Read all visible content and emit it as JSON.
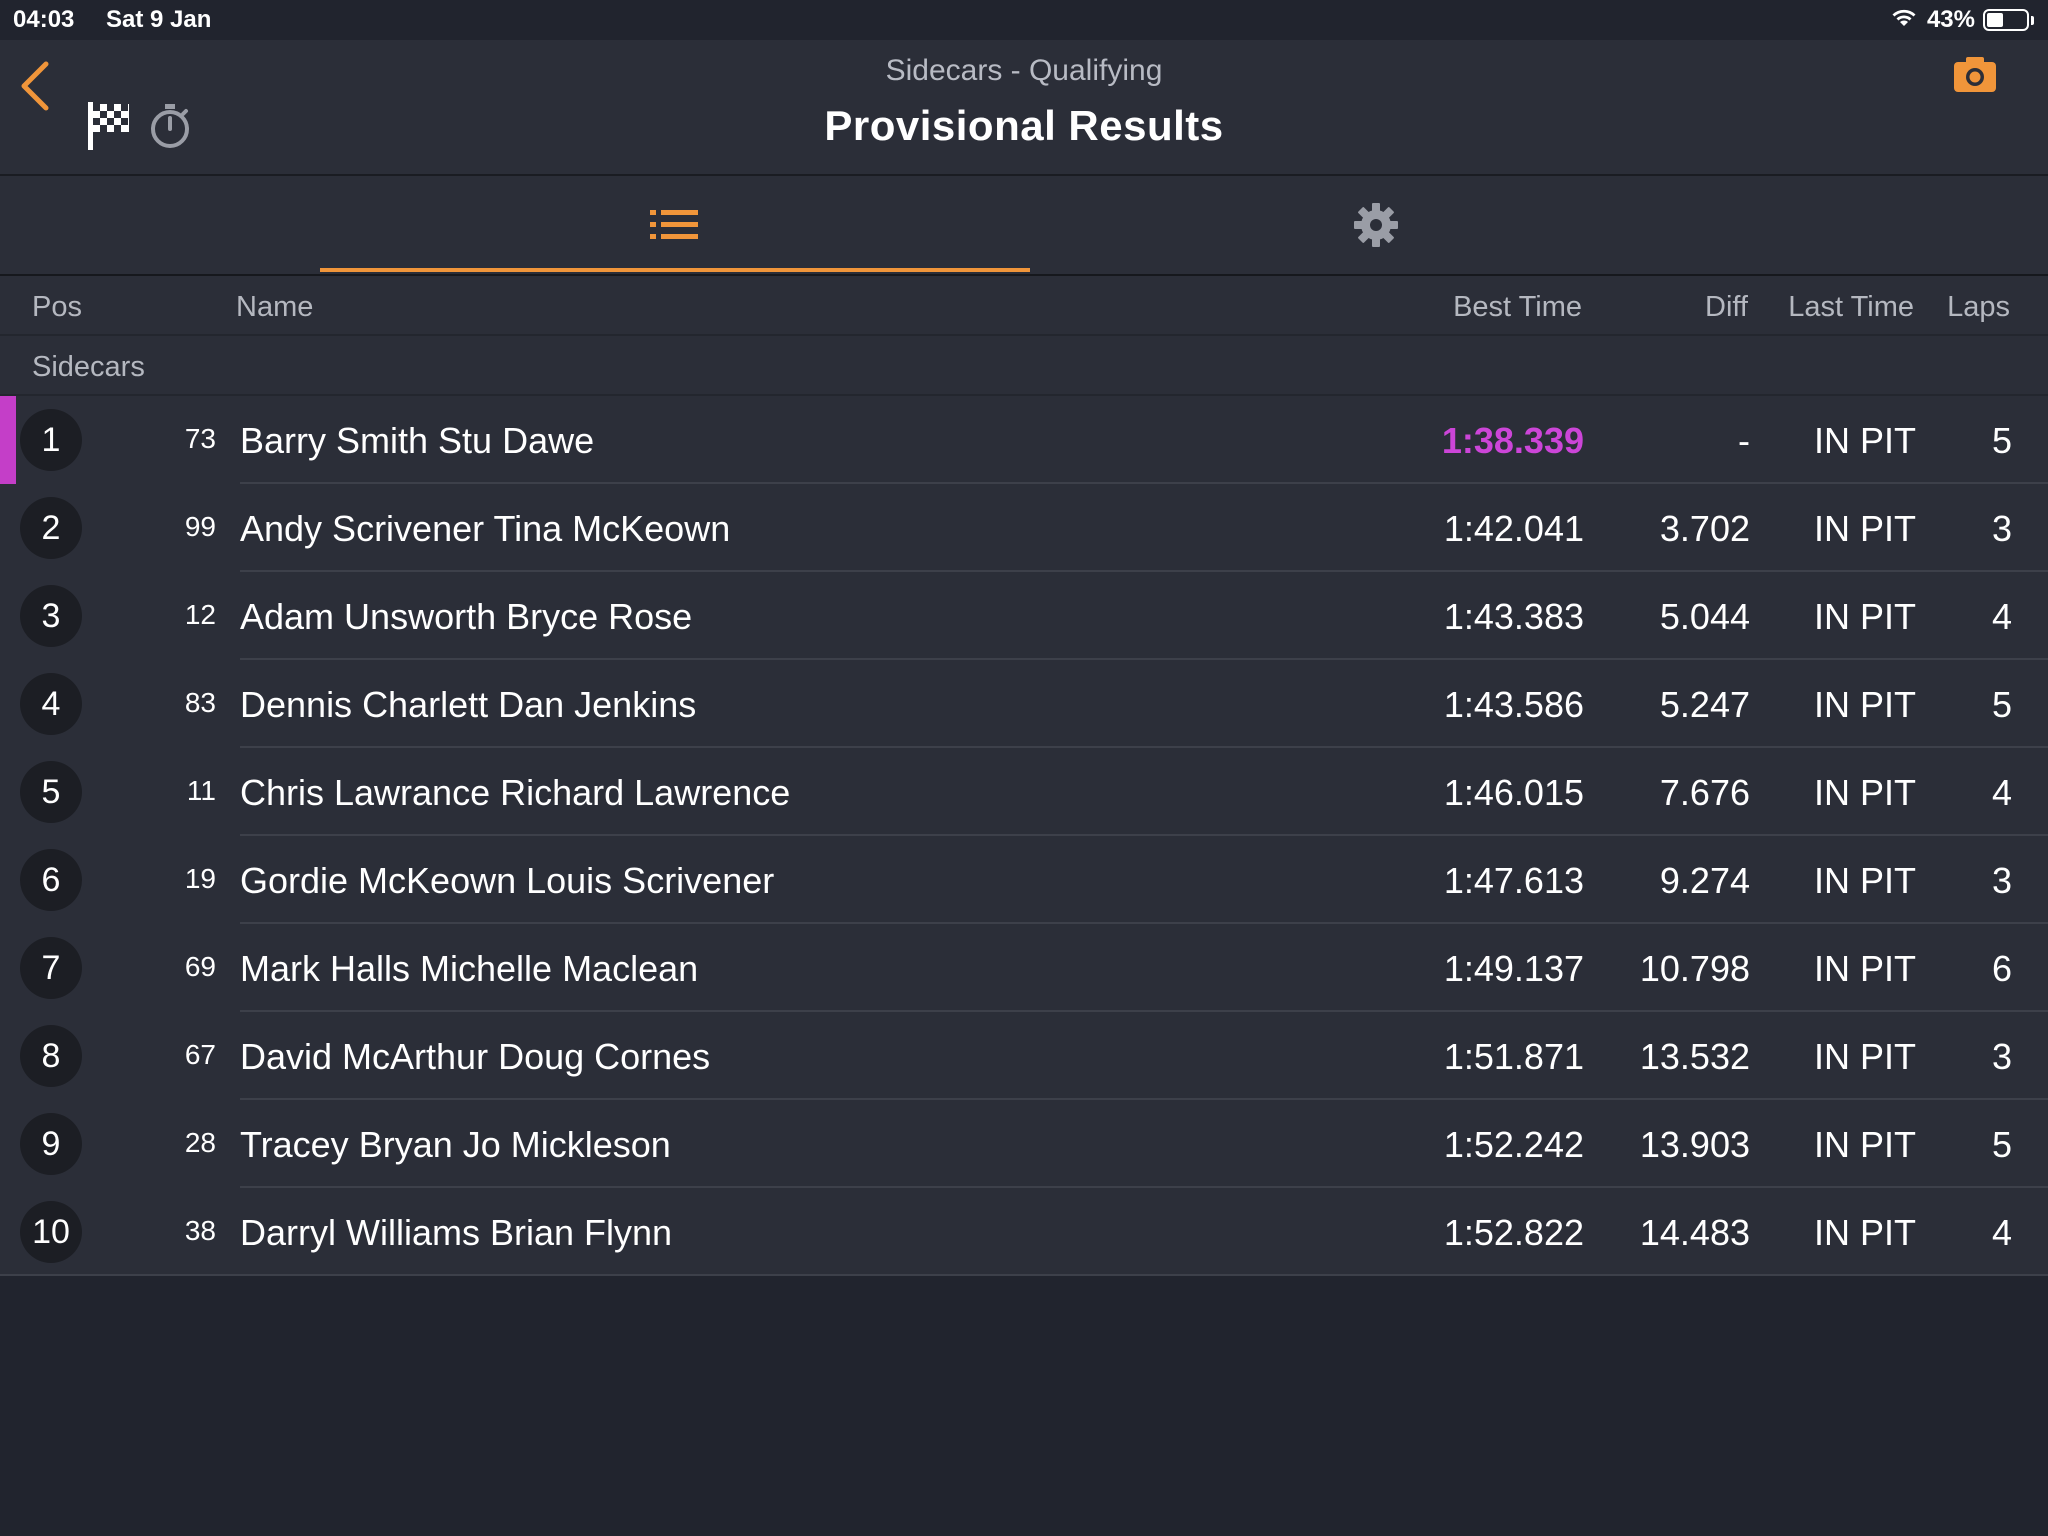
{
  "status": {
    "time": "04:03",
    "date": "Sat 9 Jan",
    "battery": "43%",
    "battery_level": 0.43
  },
  "header": {
    "subtitle": "Sidecars - Qualifying",
    "title": "Provisional Results"
  },
  "colors": {
    "accent": "#f0953a",
    "fastest": "#cc45d8",
    "background": "#21242e",
    "row": "#2b2e38"
  },
  "icons": {
    "back": "chevron-left-icon",
    "flag": "checkered-flag-icon",
    "timer": "stopwatch-icon",
    "camera": "camera-icon",
    "list": "list-icon",
    "settings": "gear-icon"
  },
  "columns": {
    "pos": "Pos",
    "name": "Name",
    "best": "Best Time",
    "diff": "Diff",
    "last": "Last Time",
    "laps": "Laps"
  },
  "group": "Sidecars",
  "results": [
    {
      "pos": "1",
      "num": "73",
      "name": "Barry Smith Stu Dawe",
      "best": "1:38.339",
      "diff": "-",
      "last": "IN PIT",
      "laps": "5"
    },
    {
      "pos": "2",
      "num": "99",
      "name": "Andy Scrivener Tina McKeown",
      "best": "1:42.041",
      "diff": "3.702",
      "last": "IN PIT",
      "laps": "3"
    },
    {
      "pos": "3",
      "num": "12",
      "name": "Adam Unsworth Bryce Rose",
      "best": "1:43.383",
      "diff": "5.044",
      "last": "IN PIT",
      "laps": "4"
    },
    {
      "pos": "4",
      "num": "83",
      "name": "Dennis Charlett Dan Jenkins",
      "best": "1:43.586",
      "diff": "5.247",
      "last": "IN PIT",
      "laps": "5"
    },
    {
      "pos": "5",
      "num": "11",
      "name": "Chris Lawrance Richard Lawrence",
      "best": "1:46.015",
      "diff": "7.676",
      "last": "IN PIT",
      "laps": "4"
    },
    {
      "pos": "6",
      "num": "19",
      "name": "Gordie McKeown Louis Scrivener",
      "best": "1:47.613",
      "diff": "9.274",
      "last": "IN PIT",
      "laps": "3"
    },
    {
      "pos": "7",
      "num": "69",
      "name": "Mark Halls Michelle Maclean",
      "best": "1:49.137",
      "diff": "10.798",
      "last": "IN PIT",
      "laps": "6"
    },
    {
      "pos": "8",
      "num": "67",
      "name": "David McArthur Doug Cornes",
      "best": "1:51.871",
      "diff": "13.532",
      "last": "IN PIT",
      "laps": "3"
    },
    {
      "pos": "9",
      "num": "28",
      "name": "Tracey Bryan Jo Mickleson",
      "best": "1:52.242",
      "diff": "13.903",
      "last": "IN PIT",
      "laps": "5"
    },
    {
      "pos": "10",
      "num": "38",
      "name": "Darryl Williams Brian Flynn",
      "best": "1:52.822",
      "diff": "14.483",
      "last": "IN PIT",
      "laps": "4"
    }
  ]
}
